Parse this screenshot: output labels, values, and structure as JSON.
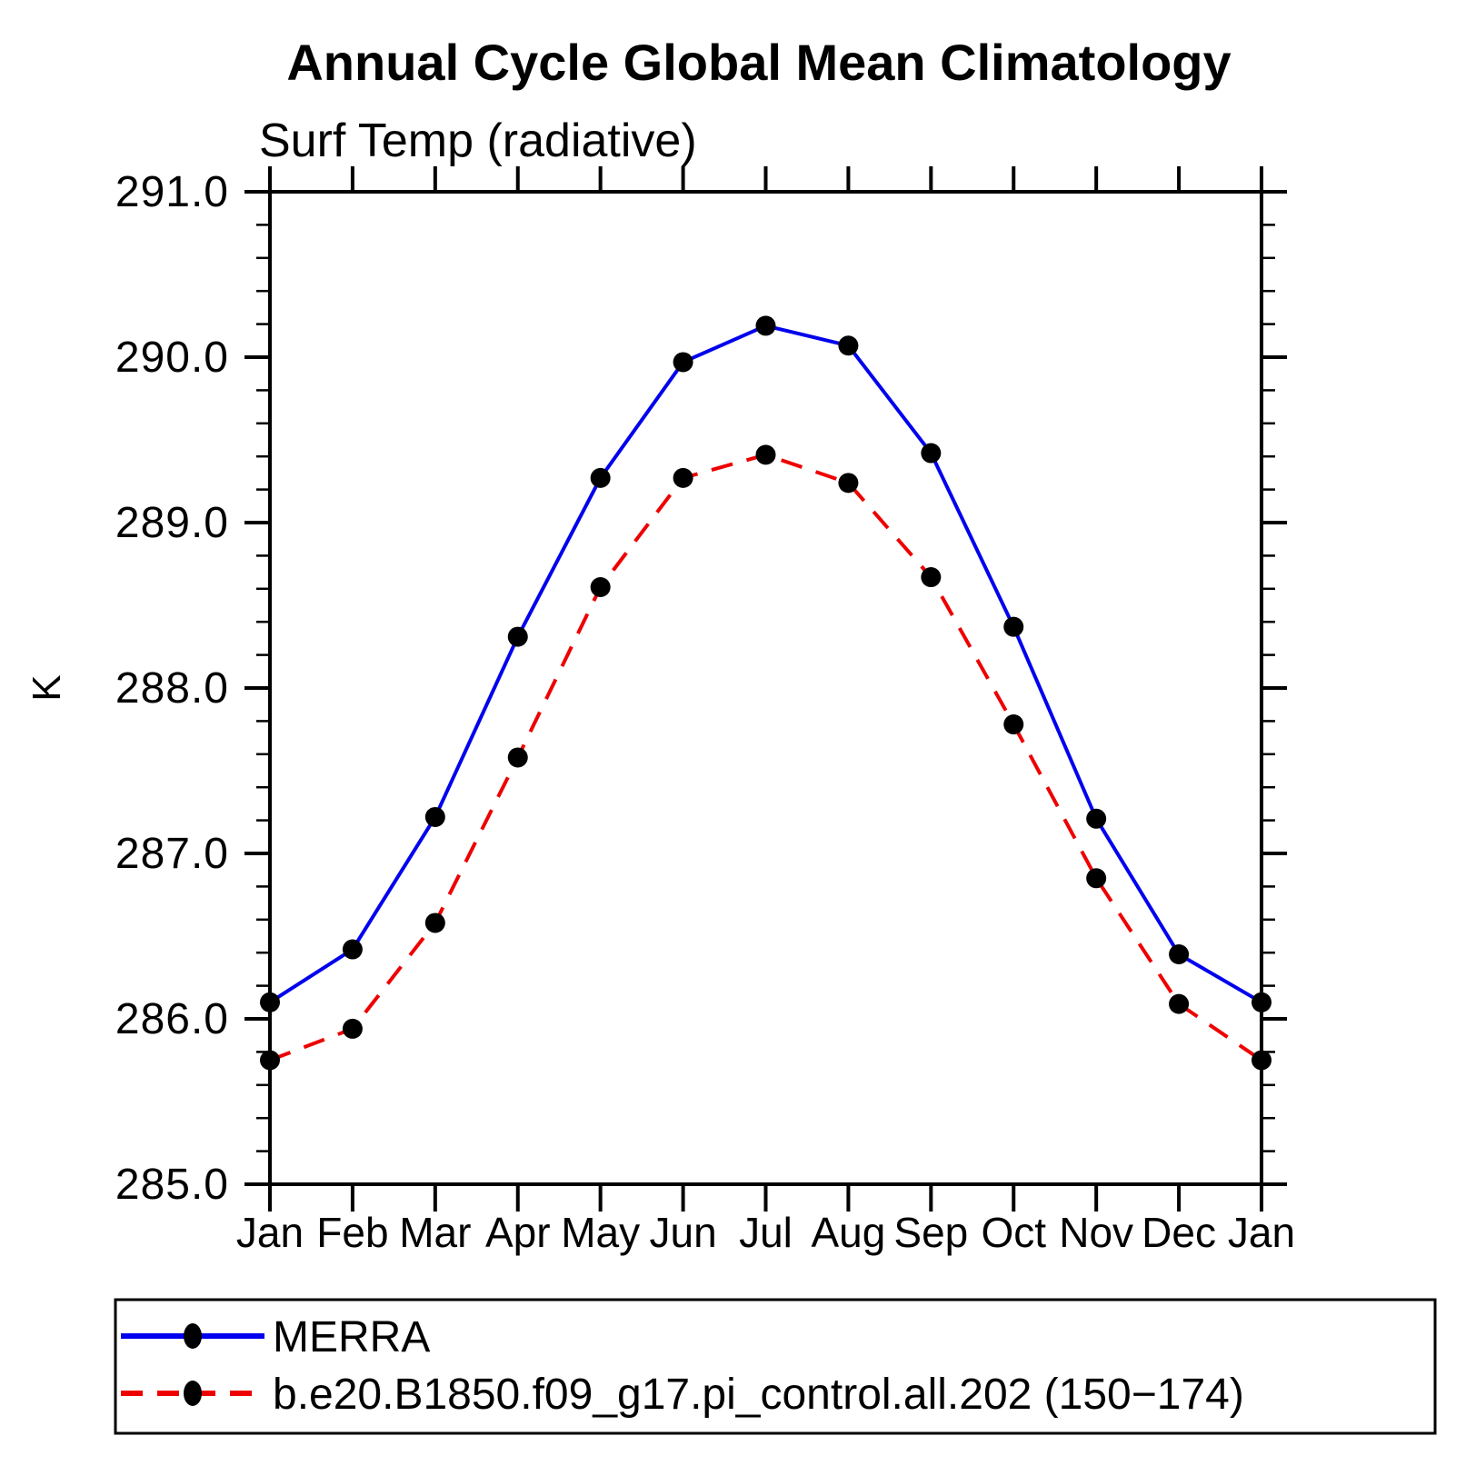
{
  "chart_data": {
    "type": "line",
    "title": "Annual Cycle Global Mean Climatology",
    "subtitle": "Surf Temp (radiative)",
    "ylabel": "K",
    "xlabel": "",
    "categories": [
      "Jan",
      "Feb",
      "Mar",
      "Apr",
      "May",
      "Jun",
      "Jul",
      "Aug",
      "Sep",
      "Oct",
      "Nov",
      "Dec",
      "Jan"
    ],
    "series": [
      {
        "name": "MERRA",
        "color": "#0000ee",
        "line_style": "solid",
        "marker": "filled-circle",
        "marker_color": "#000000",
        "values": [
          286.1,
          286.42,
          287.22,
          288.31,
          289.27,
          289.97,
          290.19,
          290.07,
          289.42,
          288.37,
          287.21,
          286.39,
          286.1
        ]
      },
      {
        "name": "b.e20.B1850.f09_g17.pi_control.all.202 (150−174)",
        "color": "#ee0000",
        "line_style": "dashed",
        "marker": "filled-circle",
        "marker_color": "#000000",
        "values": [
          285.75,
          285.94,
          286.58,
          287.58,
          288.61,
          289.27,
          289.41,
          289.24,
          288.67,
          287.78,
          286.85,
          286.09,
          285.75
        ]
      }
    ],
    "ylim": [
      285.0,
      291.0
    ],
    "ytick_major_interval": 1.0,
    "ytick_minor_interval": 0.2,
    "ytick_labels": [
      "285.0",
      "286.0",
      "287.0",
      "288.0",
      "289.0",
      "290.0",
      "291.0"
    ],
    "grid": false,
    "legend_position": "bottom",
    "axis_color": "#000000"
  }
}
